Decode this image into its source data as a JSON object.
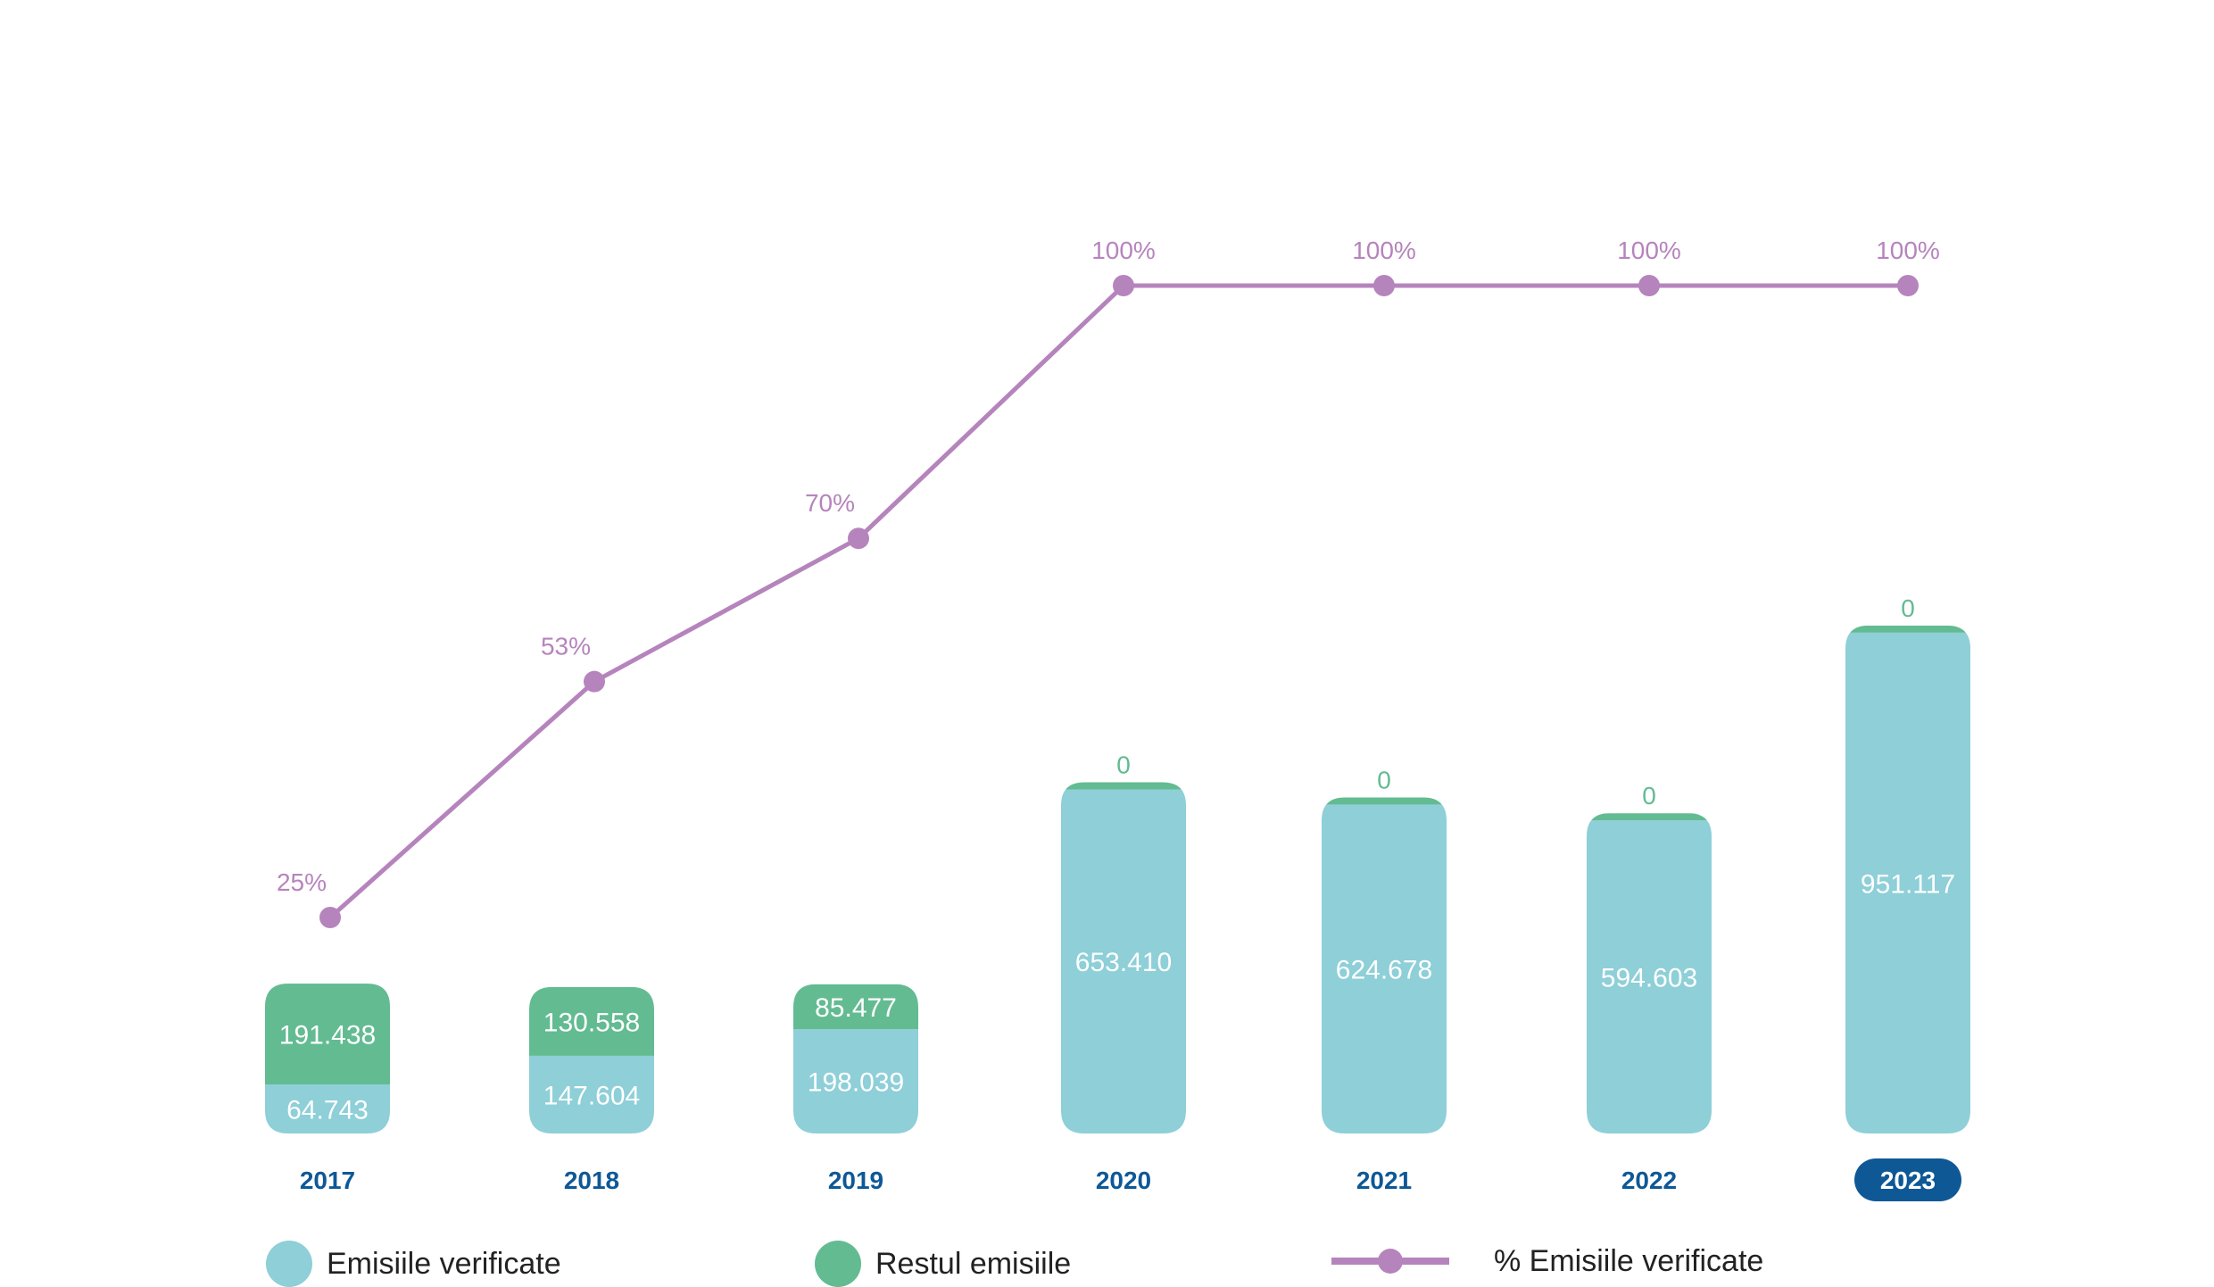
{
  "chart_data": {
    "type": "bar",
    "stacked": true,
    "categories": [
      "2017",
      "2018",
      "2019",
      "2020",
      "2021",
      "2022",
      "2023"
    ],
    "highlighted_category": "2023",
    "series": [
      {
        "name": "Emisiile verificate",
        "type": "bar",
        "color": "#8ecfd8",
        "values": [
          64743,
          147604,
          198039,
          653410,
          624678,
          594603,
          951117
        ],
        "labels": [
          "64.743",
          "147.604",
          "198.039",
          "653.410",
          "624.678",
          "594.603",
          "951.117"
        ]
      },
      {
        "name": "Restul emisiile",
        "type": "bar",
        "color": "#63bb92",
        "values": [
          191438,
          130558,
          85477,
          0,
          0,
          0,
          0
        ],
        "labels": [
          "191.438",
          "130.558",
          "85.477",
          "0",
          "0",
          "0",
          "0"
        ]
      },
      {
        "name": "% Emisiile verificate",
        "type": "line",
        "color": "#b684bd",
        "unit": "%",
        "values": [
          25,
          53,
          70,
          100,
          100,
          100,
          100
        ],
        "labels": [
          "25%",
          "53%",
          "70%",
          "100%",
          "100%",
          "100%",
          "100%"
        ]
      }
    ],
    "legend_position": "bottom",
    "grid": false
  },
  "legend": [
    {
      "label": "Emisiile verificate",
      "color": "#8ecfd8",
      "shape": "circle"
    },
    {
      "label": "Restul emisiile",
      "color": "#63bb92",
      "shape": "circle"
    },
    {
      "label": "% Emisiile verificate",
      "color": "#b684bd",
      "shape": "line-marker"
    }
  ],
  "colors": {
    "axis_label": "#0e5896",
    "highlight_fill": "#0e5896",
    "highlight_text": "#ffffff",
    "bar_label": "#ffffff",
    "zero_label": "#63bb92"
  }
}
